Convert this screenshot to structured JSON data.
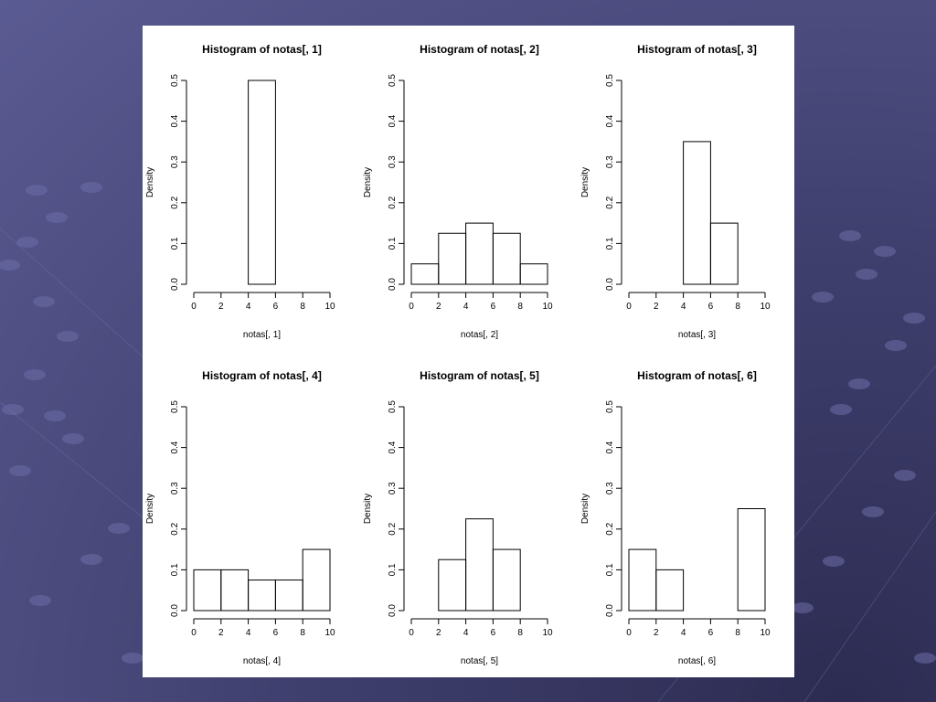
{
  "slide": {
    "background_color": "#4a4a7e",
    "figure_background": "#ffffff"
  },
  "chart_data": [
    {
      "type": "bar",
      "title": "Histogram of notas[, 1]",
      "xlabel": "notas[, 1]",
      "ylabel": "Density",
      "bins": [
        [
          0,
          2
        ],
        [
          2,
          4
        ],
        [
          4,
          6
        ],
        [
          6,
          8
        ],
        [
          8,
          10
        ]
      ],
      "values": [
        0,
        0,
        0.5,
        0,
        0
      ],
      "xlim": [
        0,
        10
      ],
      "ylim": [
        0,
        0.5
      ],
      "xticks": [
        "0",
        "2",
        "4",
        "6",
        "8",
        "10"
      ],
      "yticks": [
        "0.0",
        "0.1",
        "0.2",
        "0.3",
        "0.4",
        "0.5"
      ],
      "grid": false
    },
    {
      "type": "bar",
      "title": "Histogram of notas[, 2]",
      "xlabel": "notas[, 2]",
      "ylabel": "Density",
      "bins": [
        [
          0,
          2
        ],
        [
          2,
          4
        ],
        [
          4,
          6
        ],
        [
          6,
          8
        ],
        [
          8,
          10
        ]
      ],
      "values": [
        0.05,
        0.125,
        0.15,
        0.125,
        0.05
      ],
      "xlim": [
        0,
        10
      ],
      "ylim": [
        0,
        0.5
      ],
      "xticks": [
        "0",
        "2",
        "4",
        "6",
        "8",
        "10"
      ],
      "yticks": [
        "0.0",
        "0.1",
        "0.2",
        "0.3",
        "0.4",
        "0.5"
      ],
      "grid": false
    },
    {
      "type": "bar",
      "title": "Histogram of notas[, 3]",
      "xlabel": "notas[, 3]",
      "ylabel": "Density",
      "bins": [
        [
          0,
          2
        ],
        [
          2,
          4
        ],
        [
          4,
          6
        ],
        [
          6,
          8
        ],
        [
          8,
          10
        ]
      ],
      "values": [
        0,
        0,
        0.35,
        0.15,
        0
      ],
      "xlim": [
        0,
        10
      ],
      "ylim": [
        0,
        0.5
      ],
      "xticks": [
        "0",
        "2",
        "4",
        "6",
        "8",
        "10"
      ],
      "yticks": [
        "0.0",
        "0.1",
        "0.2",
        "0.3",
        "0.4",
        "0.5"
      ],
      "grid": false
    },
    {
      "type": "bar",
      "title": "Histogram of notas[, 4]",
      "xlabel": "notas[, 4]",
      "ylabel": "Density",
      "bins": [
        [
          0,
          2
        ],
        [
          2,
          4
        ],
        [
          4,
          6
        ],
        [
          6,
          8
        ],
        [
          8,
          10
        ]
      ],
      "values": [
        0.1,
        0.1,
        0.075,
        0.075,
        0.15
      ],
      "xlim": [
        0,
        10
      ],
      "ylim": [
        0,
        0.5
      ],
      "xticks": [
        "0",
        "2",
        "4",
        "6",
        "8",
        "10"
      ],
      "yticks": [
        "0.0",
        "0.1",
        "0.2",
        "0.3",
        "0.4",
        "0.5"
      ],
      "grid": false
    },
    {
      "type": "bar",
      "title": "Histogram of notas[, 5]",
      "xlabel": "notas[, 5]",
      "ylabel": "Density",
      "bins": [
        [
          0,
          2
        ],
        [
          2,
          4
        ],
        [
          4,
          6
        ],
        [
          6,
          8
        ],
        [
          8,
          10
        ]
      ],
      "values": [
        0,
        0.125,
        0.225,
        0.15,
        0
      ],
      "xlim": [
        0,
        10
      ],
      "ylim": [
        0,
        0.5
      ],
      "xticks": [
        "0",
        "2",
        "4",
        "6",
        "8",
        "10"
      ],
      "yticks": [
        "0.0",
        "0.1",
        "0.2",
        "0.3",
        "0.4",
        "0.5"
      ],
      "grid": false
    },
    {
      "type": "bar",
      "title": "Histogram of notas[, 6]",
      "xlabel": "notas[, 6]",
      "ylabel": "Density",
      "bins": [
        [
          0,
          2
        ],
        [
          2,
          4
        ],
        [
          4,
          6
        ],
        [
          6,
          8
        ],
        [
          8,
          10
        ]
      ],
      "values": [
        0.15,
        0.1,
        0,
        0,
        0.25
      ],
      "xlim": [
        0,
        10
      ],
      "ylim": [
        0,
        0.5
      ],
      "xticks": [
        "0",
        "2",
        "4",
        "6",
        "8",
        "10"
      ],
      "yticks": [
        "0.0",
        "0.1",
        "0.2",
        "0.3",
        "0.4",
        "0.5"
      ],
      "grid": false
    }
  ]
}
